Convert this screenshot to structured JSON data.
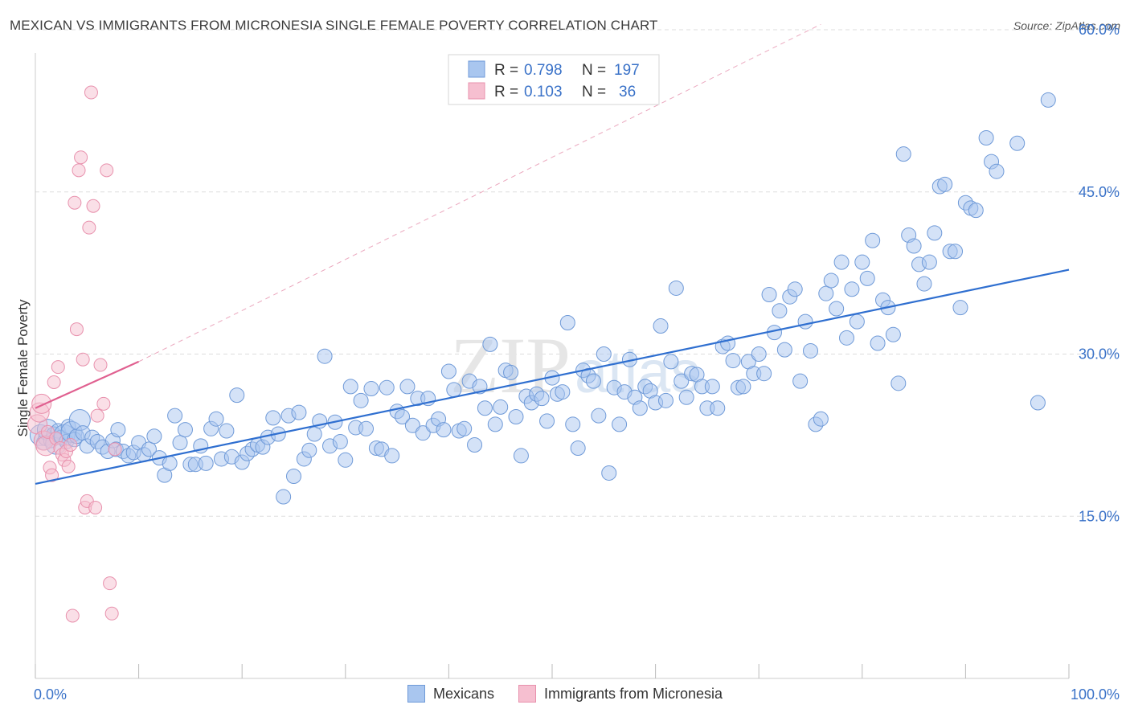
{
  "title": "MEXICAN VS IMMIGRANTS FROM MICRONESIA SINGLE FEMALE POVERTY CORRELATION CHART",
  "source": "Source: ZipAtlas.com",
  "watermark": {
    "zip": "ZIP",
    "atlas": "atlas"
  },
  "colors": {
    "blue_fill": "#a9c6ef",
    "blue_stroke": "#6f9ad8",
    "blue_line": "#2f6fd0",
    "pink_fill": "#f6bfd0",
    "pink_stroke": "#e891ad",
    "pink_line": "#e06090",
    "tick_text": "#3a72c8",
    "grid": "#dddddd"
  },
  "legend": {
    "rows": [
      {
        "r_label": "R =",
        "r_value": "0.798",
        "n_label": "N =",
        "n_value": "197"
      },
      {
        "r_label": "R =",
        "r_value": "0.103",
        "n_label": "N =",
        "n_value": "36"
      }
    ]
  },
  "bottom_legend": [
    "Mexicans",
    "Immigrants from Micronesia"
  ],
  "chart_data": {
    "type": "scatter",
    "title": "MEXICAN VS IMMIGRANTS FROM MICRONESIA SINGLE FEMALE POVERTY CORRELATION CHART",
    "xlabel": "",
    "ylabel": "Single Female Poverty",
    "xlim": [
      0,
      100
    ],
    "ylim": [
      0,
      60
    ],
    "x_tick_labels": [
      "0.0%",
      "100.0%"
    ],
    "y_ticks": [
      15,
      30,
      45,
      60
    ],
    "y_tick_labels": [
      "15.0%",
      "30.0%",
      "45.0%",
      "60.0%"
    ],
    "grid": "horizontal dashed",
    "legend_placement": "top-center",
    "series": [
      {
        "name": "Mexicans",
        "r": 0.798,
        "n": 197,
        "trend": {
          "x": [
            0,
            100
          ],
          "y": [
            18.0,
            37.8
          ]
        },
        "points": [
          [
            0.5,
            22.5
          ],
          [
            0.8,
            21.8
          ],
          [
            1.0,
            22.2
          ],
          [
            1.2,
            23.0
          ],
          [
            1.5,
            22.0
          ],
          [
            1.8,
            22.6
          ],
          [
            2.0,
            21.7
          ],
          [
            2.2,
            22.9
          ],
          [
            2.5,
            22.3
          ],
          [
            2.8,
            22.5
          ],
          [
            3.0,
            21.9
          ],
          [
            3.2,
            23.3
          ],
          [
            3.5,
            22.8
          ],
          [
            3.8,
            22.1
          ],
          [
            4.0,
            22.4
          ],
          [
            4.3,
            23.9
          ],
          [
            4.6,
            22.7
          ],
          [
            5.0,
            21.5
          ],
          [
            5.5,
            22.3
          ],
          [
            6.0,
            21.9
          ],
          [
            6.5,
            21.4
          ],
          [
            7.0,
            21.0
          ],
          [
            7.5,
            22.0
          ],
          [
            7.8,
            21.2
          ],
          [
            8.0,
            23.0
          ],
          [
            8.5,
            21.0
          ],
          [
            9.0,
            20.6
          ],
          [
            9.5,
            20.9
          ],
          [
            10.0,
            21.8
          ],
          [
            10.5,
            20.7
          ],
          [
            11.0,
            21.2
          ],
          [
            11.5,
            22.4
          ],
          [
            12.0,
            20.4
          ],
          [
            12.5,
            18.8
          ],
          [
            13.0,
            19.9
          ],
          [
            13.5,
            24.3
          ],
          [
            14.0,
            21.8
          ],
          [
            14.5,
            23.0
          ],
          [
            15.0,
            19.8
          ],
          [
            15.5,
            19.8
          ],
          [
            16.0,
            21.5
          ],
          [
            16.5,
            19.9
          ],
          [
            17.0,
            23.1
          ],
          [
            17.5,
            24.0
          ],
          [
            18.0,
            20.3
          ],
          [
            18.5,
            22.9
          ],
          [
            19.0,
            20.5
          ],
          [
            19.5,
            26.2
          ],
          [
            20.0,
            20.0
          ],
          [
            20.5,
            20.8
          ],
          [
            21.0,
            21.2
          ],
          [
            21.5,
            21.6
          ],
          [
            22.0,
            21.4
          ],
          [
            22.5,
            22.3
          ],
          [
            23.0,
            24.1
          ],
          [
            23.5,
            22.6
          ],
          [
            24.0,
            16.8
          ],
          [
            24.5,
            24.3
          ],
          [
            25.0,
            18.7
          ],
          [
            25.5,
            24.6
          ],
          [
            26.0,
            20.3
          ],
          [
            26.5,
            21.1
          ],
          [
            27.0,
            22.6
          ],
          [
            27.5,
            23.8
          ],
          [
            28.0,
            29.8
          ],
          [
            28.5,
            21.5
          ],
          [
            29.0,
            23.7
          ],
          [
            29.5,
            21.9
          ],
          [
            30.0,
            20.2
          ],
          [
            30.5,
            27.0
          ],
          [
            31.0,
            23.2
          ],
          [
            31.5,
            25.7
          ],
          [
            32.0,
            23.1
          ],
          [
            32.5,
            26.8
          ],
          [
            33.0,
            21.3
          ],
          [
            33.5,
            21.2
          ],
          [
            34.0,
            26.9
          ],
          [
            34.5,
            20.6
          ],
          [
            35.0,
            24.7
          ],
          [
            35.5,
            24.2
          ],
          [
            36.0,
            27.0
          ],
          [
            36.5,
            23.4
          ],
          [
            37.0,
            25.9
          ],
          [
            37.5,
            22.7
          ],
          [
            38.0,
            25.9
          ],
          [
            38.5,
            23.4
          ],
          [
            39.0,
            24.0
          ],
          [
            39.5,
            23.0
          ],
          [
            40.0,
            28.4
          ],
          [
            40.5,
            26.7
          ],
          [
            41.0,
            22.9
          ],
          [
            41.5,
            23.1
          ],
          [
            42.0,
            27.5
          ],
          [
            42.5,
            21.6
          ],
          [
            43.0,
            27.0
          ],
          [
            43.5,
            25.0
          ],
          [
            44.0,
            30.9
          ],
          [
            44.5,
            23.5
          ],
          [
            45.0,
            25.1
          ],
          [
            45.5,
            28.5
          ],
          [
            46.0,
            28.3
          ],
          [
            46.5,
            24.2
          ],
          [
            47.0,
            20.6
          ],
          [
            47.5,
            26.1
          ],
          [
            48.0,
            25.5
          ],
          [
            48.5,
            26.3
          ],
          [
            49.0,
            25.9
          ],
          [
            49.5,
            23.8
          ],
          [
            50.0,
            27.8
          ],
          [
            50.5,
            26.3
          ],
          [
            51.0,
            26.5
          ],
          [
            51.5,
            32.9
          ],
          [
            52.0,
            23.5
          ],
          [
            52.5,
            21.3
          ],
          [
            53.0,
            28.5
          ],
          [
            53.5,
            28.0
          ],
          [
            54.0,
            27.5
          ],
          [
            54.5,
            24.3
          ],
          [
            55.0,
            30.0
          ],
          [
            55.5,
            19.0
          ],
          [
            56.0,
            26.9
          ],
          [
            56.5,
            23.5
          ],
          [
            57.0,
            26.5
          ],
          [
            57.5,
            29.5
          ],
          [
            58.0,
            26.0
          ],
          [
            58.5,
            25.0
          ],
          [
            59.0,
            27.0
          ],
          [
            59.5,
            26.6
          ],
          [
            60.0,
            25.5
          ],
          [
            60.5,
            32.6
          ],
          [
            61.0,
            25.7
          ],
          [
            61.5,
            29.3
          ],
          [
            62.0,
            36.1
          ],
          [
            62.5,
            27.5
          ],
          [
            63.0,
            26.0
          ],
          [
            63.5,
            28.2
          ],
          [
            64.0,
            28.1
          ],
          [
            64.5,
            27.0
          ],
          [
            65.0,
            25.0
          ],
          [
            65.5,
            27.0
          ],
          [
            66.0,
            25.0
          ],
          [
            66.5,
            30.7
          ],
          [
            67.0,
            31.0
          ],
          [
            67.5,
            29.4
          ],
          [
            68.0,
            26.9
          ],
          [
            68.5,
            27.0
          ],
          [
            69.0,
            29.3
          ],
          [
            69.5,
            28.2
          ],
          [
            70.0,
            30.0
          ],
          [
            70.5,
            28.2
          ],
          [
            71.0,
            35.5
          ],
          [
            71.5,
            32.0
          ],
          [
            72.0,
            34.0
          ],
          [
            72.5,
            30.4
          ],
          [
            73.0,
            35.3
          ],
          [
            73.5,
            36.0
          ],
          [
            74.0,
            27.5
          ],
          [
            74.5,
            33.0
          ],
          [
            75.0,
            30.3
          ],
          [
            75.5,
            23.5
          ],
          [
            76.0,
            24.0
          ],
          [
            76.5,
            35.6
          ],
          [
            77.0,
            36.8
          ],
          [
            77.5,
            34.2
          ],
          [
            78.0,
            38.5
          ],
          [
            78.5,
            31.5
          ],
          [
            79.0,
            36.0
          ],
          [
            79.5,
            33.0
          ],
          [
            80.0,
            38.5
          ],
          [
            80.5,
            37.0
          ],
          [
            81.0,
            40.5
          ],
          [
            81.5,
            31.0
          ],
          [
            82.0,
            35.0
          ],
          [
            82.5,
            34.3
          ],
          [
            83.0,
            31.8
          ],
          [
            83.5,
            27.3
          ],
          [
            84.0,
            48.5
          ],
          [
            84.5,
            41.0
          ],
          [
            85.0,
            40.0
          ],
          [
            85.5,
            38.3
          ],
          [
            86.0,
            36.5
          ],
          [
            86.5,
            38.5
          ],
          [
            87.0,
            41.2
          ],
          [
            87.5,
            45.5
          ],
          [
            88.0,
            45.7
          ],
          [
            88.5,
            39.5
          ],
          [
            89.0,
            39.5
          ],
          [
            89.5,
            34.3
          ],
          [
            90.0,
            44.0
          ],
          [
            90.5,
            43.5
          ],
          [
            91.0,
            43.3
          ],
          [
            92.0,
            50.0
          ],
          [
            92.5,
            47.8
          ],
          [
            93.0,
            46.9
          ],
          [
            95.0,
            49.5
          ],
          [
            97.0,
            25.5
          ],
          [
            98.0,
            53.5
          ]
        ]
      },
      {
        "name": "Immigrants from Micronesia",
        "r": 0.103,
        "n": 36,
        "trend": {
          "x": [
            0,
            10
          ],
          "y": [
            25.0,
            29.3
          ]
        },
        "points": [
          [
            0.2,
            23.5
          ],
          [
            0.4,
            24.6
          ],
          [
            0.6,
            25.4
          ],
          [
            0.8,
            22.0
          ],
          [
            1.0,
            21.5
          ],
          [
            1.2,
            22.8
          ],
          [
            1.4,
            19.5
          ],
          [
            1.6,
            18.8
          ],
          [
            1.8,
            27.4
          ],
          [
            2.0,
            22.2
          ],
          [
            2.2,
            28.8
          ],
          [
            2.4,
            21.3
          ],
          [
            2.6,
            20.7
          ],
          [
            2.8,
            20.2
          ],
          [
            3.0,
            21.0
          ],
          [
            3.2,
            19.6
          ],
          [
            3.4,
            21.6
          ],
          [
            3.6,
            5.8
          ],
          [
            3.8,
            44.0
          ],
          [
            4.0,
            32.3
          ],
          [
            4.2,
            47.0
          ],
          [
            4.4,
            48.2
          ],
          [
            4.6,
            29.5
          ],
          [
            4.8,
            15.8
          ],
          [
            5.0,
            16.4
          ],
          [
            5.2,
            41.7
          ],
          [
            5.4,
            54.2
          ],
          [
            5.6,
            43.7
          ],
          [
            5.8,
            15.8
          ],
          [
            6.0,
            24.3
          ],
          [
            6.3,
            29.0
          ],
          [
            6.6,
            25.4
          ],
          [
            6.9,
            47.0
          ],
          [
            7.2,
            8.8
          ],
          [
            7.4,
            6.0
          ],
          [
            7.7,
            21.2
          ]
        ]
      }
    ]
  }
}
